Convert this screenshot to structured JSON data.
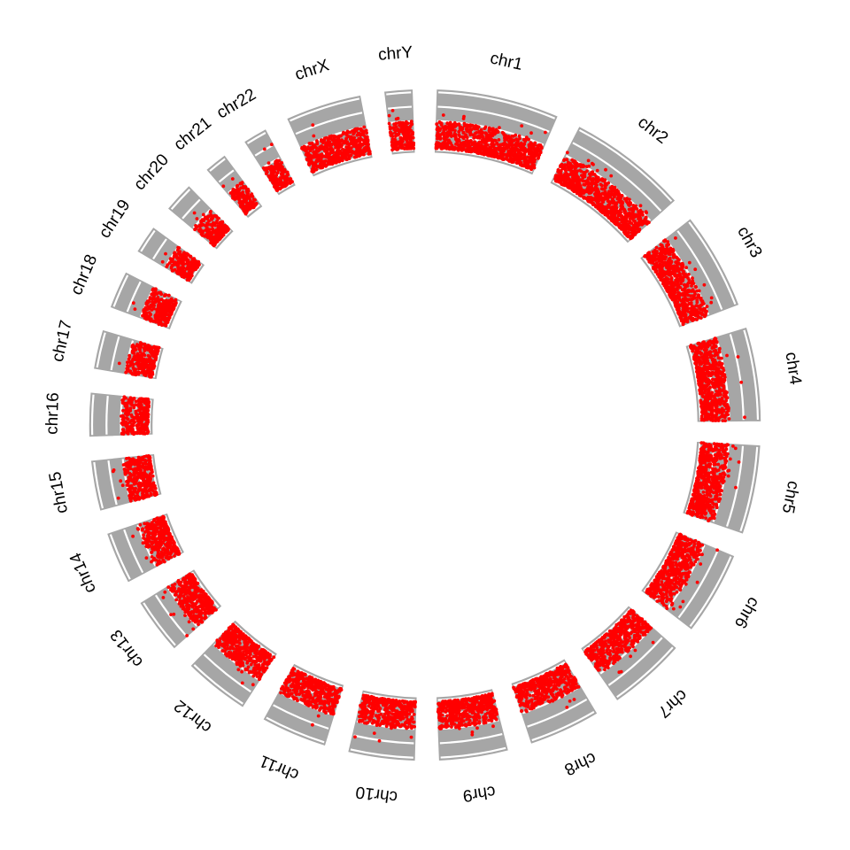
{
  "chart_data": {
    "type": "scatter",
    "layout": "circular",
    "title": "",
    "sectors": [
      {
        "name": "chr1",
        "length_mb": 249
      },
      {
        "name": "chr2",
        "length_mb": 243
      },
      {
        "name": "chr3",
        "length_mb": 198
      },
      {
        "name": "chr4",
        "length_mb": 191
      },
      {
        "name": "chr5",
        "length_mb": 181
      },
      {
        "name": "chr6",
        "length_mb": 171
      },
      {
        "name": "chr7",
        "length_mb": 159
      },
      {
        "name": "chr8",
        "length_mb": 146
      },
      {
        "name": "chr9",
        "length_mb": 141
      },
      {
        "name": "chr10",
        "length_mb": 136
      },
      {
        "name": "chr11",
        "length_mb": 135
      },
      {
        "name": "chr12",
        "length_mb": 134
      },
      {
        "name": "chr13",
        "length_mb": 115
      },
      {
        "name": "chr14",
        "length_mb": 107
      },
      {
        "name": "chr15",
        "length_mb": 103
      },
      {
        "name": "chr16",
        "length_mb": 90
      },
      {
        "name": "chr17",
        "length_mb": 81
      },
      {
        "name": "chr18",
        "length_mb": 78
      },
      {
        "name": "chr19",
        "length_mb": 59
      },
      {
        "name": "chr20",
        "length_mb": 63
      },
      {
        "name": "chr21",
        "length_mb": 48
      },
      {
        "name": "chr22",
        "length_mb": 51
      },
      {
        "name": "chrX",
        "length_mb": 155
      },
      {
        "name": "chrY",
        "length_mb": 59
      }
    ],
    "ylim": [
      0,
      4
    ],
    "grid_breaks": [
      0,
      1,
      2,
      3,
      4
    ],
    "typical_y_range": [
      0.1,
      2.0
    ],
    "colors": {
      "track_bg": "#a6a6a6",
      "grid": "#ffffff",
      "points": "#ff0000"
    }
  }
}
